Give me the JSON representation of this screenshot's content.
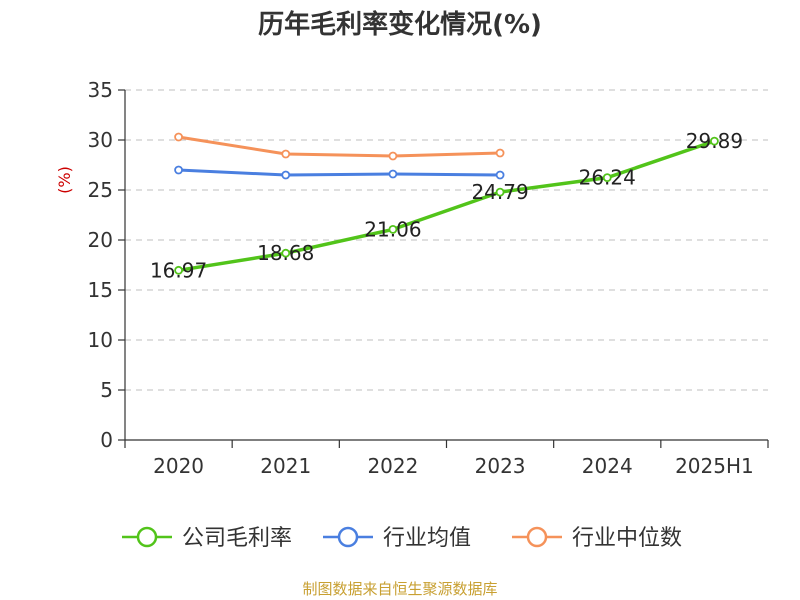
{
  "chart_data": {
    "type": "line",
    "title": "历年毛利率变化情况(%)",
    "ylabel": "(%)",
    "categories": [
      "2020",
      "2021",
      "2022",
      "2023",
      "2024",
      "2025H1"
    ],
    "ylim": [
      0,
      35
    ],
    "yticks": [
      0,
      5,
      10,
      15,
      20,
      25,
      30,
      35
    ],
    "grid": true,
    "legend_position": "bottom",
    "series": [
      {
        "name": "公司毛利率",
        "color": "#52c41a",
        "values": [
          16.97,
          18.68,
          21.06,
          24.79,
          26.24,
          29.89
        ],
        "labels": [
          "16.97",
          "18.68",
          "21.06",
          "24.79",
          "26.24",
          "29.89"
        ]
      },
      {
        "name": "行业均值",
        "color": "#4a7fe0",
        "values": [
          27.0,
          26.5,
          26.6,
          26.5,
          null,
          null
        ]
      },
      {
        "name": "行业中位数",
        "color": "#f5925a",
        "values": [
          30.3,
          28.6,
          28.4,
          28.7,
          null,
          null
        ]
      }
    ]
  },
  "footer": {
    "source": "制图数据来自恒生聚源数据库"
  }
}
